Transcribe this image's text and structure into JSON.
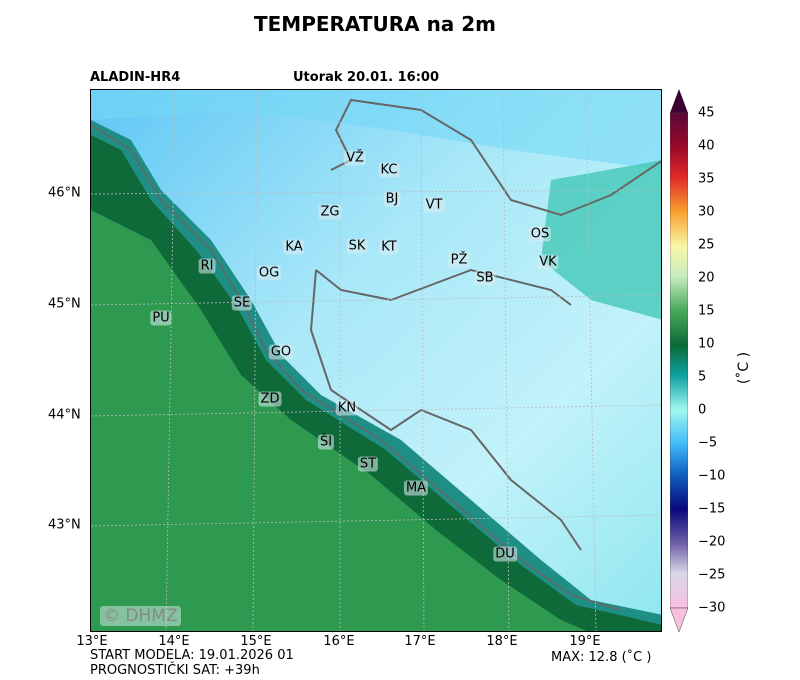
{
  "title": "TEMPERATURA na 2m",
  "model": "ALADIN-HR4",
  "valid_time": "Utorak 20.01. 16:00",
  "watermark": "© DHMZ",
  "footer": {
    "start": "START MODELA: 19.01.2026 01",
    "forecast_hour": "PROGNOSTIČKI SAT: +39h",
    "max": "MAX: 12.8 (˚C )"
  },
  "lat_labels": [
    "46°N",
    "45°N",
    "44°N",
    "43°N"
  ],
  "lon_labels": [
    "13°E",
    "14°E",
    "15°E",
    "16°E",
    "17°E",
    "18°E",
    "19°E"
  ],
  "cities": [
    "VŽ",
    "KC",
    "BJ",
    "VT",
    "ZG",
    "OS",
    "KA",
    "SK",
    "KT",
    "PŽ",
    "VK",
    "RI",
    "OG",
    "SB",
    "SE",
    "PU",
    "GO",
    "ZD",
    "KN",
    "ŠI",
    "ST",
    "MA",
    "DU"
  ],
  "colorbar": {
    "unit": "(˚C )",
    "ticks": [
      "45",
      "40",
      "35",
      "30",
      "25",
      "20",
      "15",
      "10",
      "5",
      "0",
      "−5",
      "−10",
      "−15",
      "−20",
      "−25",
      "−30"
    ],
    "range": [
      -30,
      45
    ],
    "extend": "both"
  }
}
